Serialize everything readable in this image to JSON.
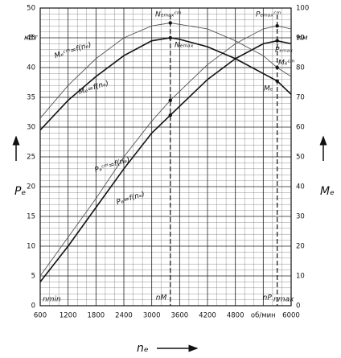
{
  "chart_data": {
    "type": "line",
    "x": [
      600,
      1200,
      1800,
      2400,
      3000,
      3400,
      3600,
      4200,
      4800,
      5400,
      5700,
      6000
    ],
    "series": [
      {
        "name": "Pₑᶜᵐ=f(nₑ)",
        "color": "#555",
        "width": 0.9,
        "values": [
          5,
          11.5,
          18,
          25,
          31,
          34.5,
          36,
          40.5,
          44,
          46.5,
          47,
          46.5
        ]
      },
      {
        "name": "Pₑ=f(nₑ)",
        "color": "#111",
        "width": 1.6,
        "values": [
          4,
          10,
          16.5,
          23,
          29,
          32,
          33.5,
          38,
          41.5,
          44,
          44.5,
          44
        ]
      },
      {
        "name": "Mₑᶜᵐ=f(nₑ)",
        "color": "#555",
        "width": 0.9,
        "axis": "y2",
        "values": [
          63,
          74,
          83,
          90,
          94,
          95,
          94.5,
          93,
          89,
          84,
          80,
          77
        ]
      },
      {
        "name": "Mₑ=f(nₑ)",
        "color": "#111",
        "width": 1.6,
        "axis": "y2",
        "values": [
          59,
          69,
          77,
          84,
          89,
          90,
          89.5,
          87,
          83,
          78,
          75.5,
          71
        ]
      }
    ],
    "xlim": [
      600,
      6000
    ],
    "xticks": [
      600,
      1200,
      1800,
      2400,
      3000,
      3600,
      4200,
      4800,
      {
        "value": 5400,
        "label": "об/мин"
      },
      6000
    ],
    "ylim": [
      0,
      50
    ],
    "yticks": [
      0,
      5,
      10,
      15,
      20,
      25,
      30,
      35,
      40,
      45,
      50
    ],
    "y2lim": [
      0,
      100
    ],
    "y2ticks": [
      0,
      10,
      20,
      30,
      40,
      50,
      60,
      70,
      80,
      90,
      100
    ],
    "grid": true,
    "markers": [
      {
        "label": "nM",
        "x": 3400
      },
      {
        "label": "nP",
        "x": 5700
      }
    ],
    "xlabel": "nₑ",
    "ylabel": "Pₑ",
    "y2label": "Mₑ",
    "annotations": [
      "кВт",
      "Нм",
      "nmin",
      "nmax",
      "Nₑₘₐₓᶜᵐ",
      "Nₑₘₐₓ",
      "Pₑₘₐₓᶜᵐ",
      "Pₑₘₐₓ",
      "Mₑᶜᵐ",
      "Mₑ"
    ]
  }
}
